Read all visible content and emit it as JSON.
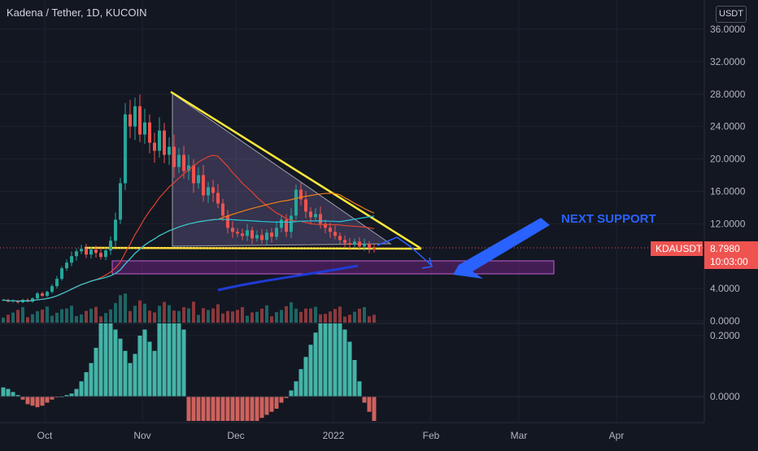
{
  "header": {
    "symbol_title": "Kadena / Tether, 1D, KUCOIN",
    "currency_button": "USDT"
  },
  "annotations": {
    "next_support": "NEXT SUPPORT"
  },
  "price_tag": {
    "symbol": "KDAUSDT",
    "price": "8.7980",
    "countdown": "10:03:00"
  },
  "colors": {
    "background": "#131722",
    "up": "#26a69a",
    "down": "#ef5350",
    "triangle": "#ffeb3b",
    "annotation_blue": "#2962ff",
    "support_zone": "#9c27b0"
  },
  "chart_data": [
    {
      "type": "candlestick",
      "x_tick_labels": [
        "Oct",
        "Nov",
        "Dec",
        "2022",
        "Feb",
        "Mar",
        "Apr"
      ],
      "y_tick_labels": [
        "36.0000",
        "32.0000",
        "28.0000",
        "24.0000",
        "20.0000",
        "16.0000",
        "12.0000",
        "4.0000",
        "0.0000"
      ],
      "ylim": [
        0,
        36
      ],
      "overlays": [
        "moving averages",
        "volume"
      ],
      "last_price": 8.798,
      "pattern": {
        "type": "descending triangle",
        "apex_high": 28.4,
        "base": 9.2
      },
      "support_zone": [
        6.3,
        7.7
      ],
      "close_series": [
        2.6,
        2.4,
        2.5,
        2.3,
        2.6,
        2.4,
        2.8,
        3.4,
        3.1,
        3.6,
        4.3,
        5.2,
        6.5,
        7.2,
        8.0,
        8.6,
        8.9,
        8.2,
        8.8,
        8.4,
        7.9,
        8.7,
        9.9,
        12.5,
        17.0,
        25.5,
        24.0,
        26.5,
        23.0,
        24.5,
        22.0,
        21.0,
        23.5,
        20.5,
        21.5,
        19.0,
        20.5,
        18.5,
        19.2,
        17.0,
        18.0,
        15.5,
        16.5,
        15.8,
        14.5,
        13.0,
        11.5,
        11.0,
        10.8,
        10.5,
        11.2,
        10.2,
        10.6,
        10.0,
        10.9,
        10.4,
        11.5,
        12.5,
        11.0,
        13.0,
        16.2,
        15.0,
        13.5,
        12.8,
        13.2,
        12.0,
        11.5,
        11.0,
        10.5,
        10.0,
        9.6,
        9.4,
        9.8,
        9.2,
        9.5,
        9.0,
        8.8
      ]
    },
    {
      "type": "oscillator",
      "y_tick_labels": [
        "0.2000",
        "0.0000"
      ],
      "ylim": [
        -0.08,
        0.24
      ],
      "histogram": [
        0.03,
        0.025,
        0.015,
        0.005,
        -0.01,
        -0.025,
        -0.03,
        -0.035,
        -0.03,
        -0.02,
        -0.01,
        -0.003,
        0.0,
        0.005,
        0.01,
        0.025,
        0.05,
        0.08,
        0.11,
        0.16,
        0.24,
        0.24,
        0.24,
        0.22,
        0.19,
        0.15,
        0.11,
        0.14,
        0.2,
        0.22,
        0.18,
        0.15,
        0.24,
        0.24,
        0.24,
        0.24,
        0.24,
        0.22,
        -0.08,
        -0.08,
        -0.08,
        -0.08,
        -0.08,
        -0.08,
        -0.08,
        -0.08,
        -0.08,
        -0.08,
        -0.08,
        -0.08,
        -0.08,
        -0.08,
        -0.08,
        -0.07,
        -0.06,
        -0.05,
        -0.04,
        -0.02,
        -0.005,
        0.02,
        0.05,
        0.09,
        0.13,
        0.17,
        0.21,
        0.24,
        0.24,
        0.24,
        0.24,
        0.24,
        0.22,
        0.18,
        0.12,
        0.05,
        -0.02,
        -0.05,
        -0.08
      ]
    }
  ]
}
